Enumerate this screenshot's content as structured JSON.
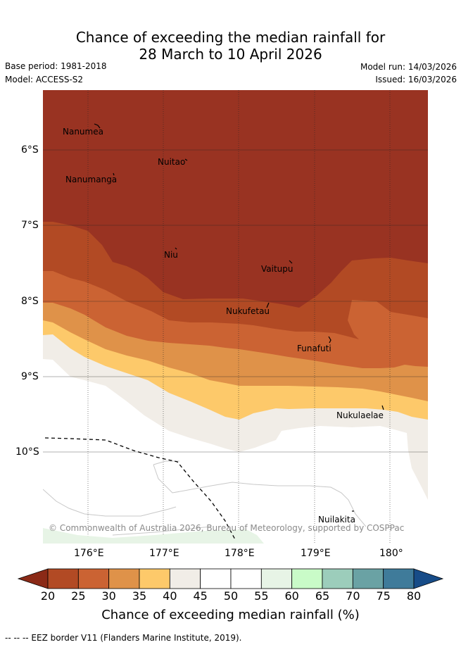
{
  "header": {
    "title_line1": "Chance of exceeding the median rainfall for",
    "title_line2": "28 March to 10 April 2026",
    "base_period": "Base period: 1981-2018",
    "model": "Model: ACCESS-S2",
    "model_run": "Model run: 14/03/2026",
    "issued": "Issued: 16/03/2026"
  },
  "map": {
    "lat_ticks": [
      "6°S",
      "7°S",
      "8°S",
      "9°S",
      "10°S"
    ],
    "lon_ticks": [
      "176°E",
      "177°E",
      "178°E",
      "179°E",
      "180°"
    ],
    "places": [
      "Nanumea",
      "Nuitao",
      "Nanumanga",
      "Niu",
      "Vaitupu",
      "Nukufetau",
      "Funafuti",
      "Nukulaelae",
      "Nuilakita"
    ],
    "copyright": "© Commonwealth of Australia 2026, Bureau of Meteorology, supported by COSPPac"
  },
  "colorbar": {
    "labels": [
      "20",
      "25",
      "30",
      "35",
      "40",
      "45",
      "50",
      "55",
      "60",
      "65",
      "70",
      "75",
      "80"
    ],
    "colors": [
      "#8b2a17",
      "#b24a24",
      "#cb6333",
      "#df9249",
      "#fdc96a",
      "#f1ede7",
      "#ffffff",
      "#ffffff",
      "#e7f4e6",
      "#c9fbc8",
      "#9ccdbb",
      "#6aa2a4",
      "#3f7b9a",
      "#174c88"
    ],
    "title": "Chance of exceeding median rainfall (%)"
  },
  "legend": {
    "eez": "-- -- -- EEZ border V11 (Flanders Marine Institute, 2019)."
  }
}
